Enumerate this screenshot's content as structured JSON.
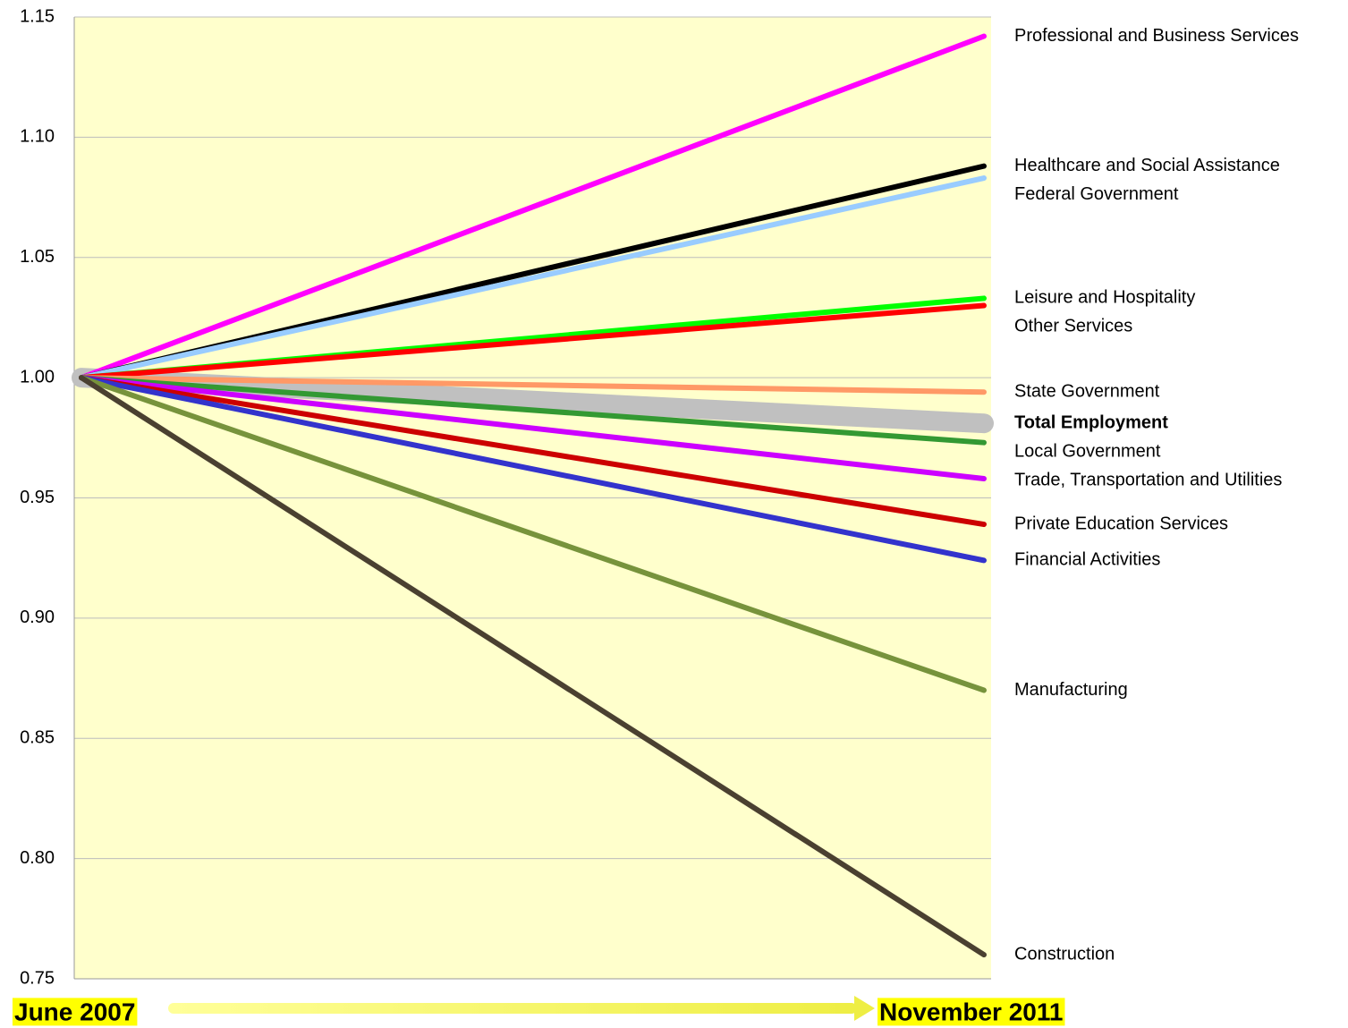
{
  "chart_data": {
    "type": "line",
    "x": [
      "June 2007",
      "November 2011"
    ],
    "series": [
      {
        "name": "Professional and Business Services",
        "color": "#ff00ff",
        "values": [
          1.0,
          1.142
        ]
      },
      {
        "name": "Healthcare and Social Assistance",
        "color": "#000000",
        "values": [
          1.0,
          1.088
        ]
      },
      {
        "name": "Federal Government",
        "color": "#99ccff",
        "values": [
          1.0,
          1.083
        ]
      },
      {
        "name": "Leisure and Hospitality",
        "color": "#00ff00",
        "values": [
          1.0,
          1.033
        ]
      },
      {
        "name": "Other Services",
        "color": "#ff0000",
        "values": [
          1.0,
          1.03
        ]
      },
      {
        "name": "State Government",
        "color": "#ff9966",
        "values": [
          1.0,
          0.994
        ]
      },
      {
        "name": "Total Employment",
        "color": "#c0c0c0",
        "bold": true,
        "values": [
          1.0,
          0.981
        ]
      },
      {
        "name": "Local Government",
        "color": "#339933",
        "values": [
          1.0,
          0.973
        ]
      },
      {
        "name": "Trade, Transportation and Utilities",
        "color": "#cc00ff",
        "values": [
          1.0,
          0.958
        ]
      },
      {
        "name": "Private Education Services",
        "color": "#cc0000",
        "values": [
          1.0,
          0.939
        ]
      },
      {
        "name": "Financial Activities",
        "color": "#3333cc",
        "values": [
          1.0,
          0.924
        ]
      },
      {
        "name": "Manufacturing",
        "color": "#77933c",
        "values": [
          1.0,
          0.87
        ]
      },
      {
        "name": "Construction",
        "color": "#4a4030",
        "values": [
          1.0,
          0.76
        ]
      }
    ],
    "ylim": [
      0.75,
      1.15
    ],
    "yticks": [
      0.75,
      {
        "value": 0.8,
        "label": "0.80"
      },
      0.85,
      {
        "value": 0.9,
        "label": "0.90"
      },
      0.95,
      {
        "value": 1.0,
        "label": "1.00"
      },
      1.05,
      {
        "value": 1.1,
        "label": "1.10"
      },
      1.15
    ],
    "grid": true
  }
}
